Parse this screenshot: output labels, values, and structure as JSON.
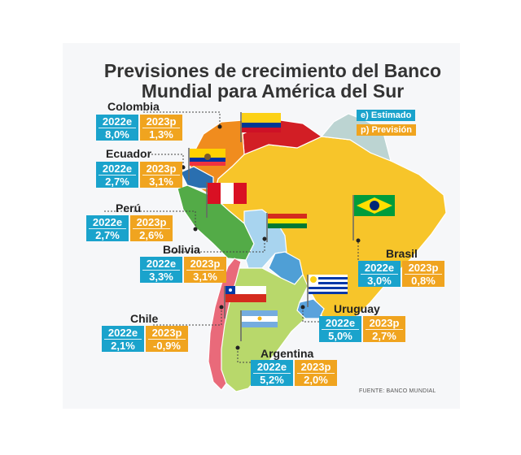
{
  "title": {
    "line1": "Previsiones de crecimiento del Banco",
    "line2": "Mundial para América del Sur"
  },
  "legend": {
    "estimated": "e) Estimado",
    "forecast": "p) Previsión",
    "colors": {
      "estimated": "#1aa3cc",
      "forecast": "#f0a41f"
    }
  },
  "countries": {
    "colombia": {
      "name": "Colombia",
      "e_label": "2022e",
      "e_value": "8,0%",
      "p_label": "2023p",
      "p_value": "1,3%"
    },
    "ecuador": {
      "name": "Ecuador",
      "e_label": "2022e",
      "e_value": "2,7%",
      "p_label": "2023p",
      "p_value": "3,1%"
    },
    "peru": {
      "name": "Perú",
      "e_label": "2022e",
      "e_value": "2,7%",
      "p_label": "2023p",
      "p_value": "2,6%"
    },
    "bolivia": {
      "name": "Bolivia",
      "e_label": "2022e",
      "e_value": "3,3%",
      "p_label": "2023p",
      "p_value": "3,1%"
    },
    "chile": {
      "name": "Chile",
      "e_label": "2022e",
      "e_value": "2,1%",
      "p_label": "2023p",
      "p_value": "-0,9%"
    },
    "brasil": {
      "name": "Brasil",
      "e_label": "2022e",
      "e_value": "3,0%",
      "p_label": "2023p",
      "p_value": "0,8%"
    },
    "uruguay": {
      "name": "Uruguay",
      "e_label": "2022e",
      "e_value": "5,0%",
      "p_label": "2023p",
      "p_value": "2,7%"
    },
    "argentina": {
      "name": "Argentina",
      "e_label": "2022e",
      "e_value": "5,2%",
      "p_label": "2023p",
      "p_value": "2,0%"
    }
  },
  "source": "FUENTE: BANCO MUNDIAL",
  "map_colors": {
    "brasil": "#f7c52a",
    "colombia": "#f08c1e",
    "venezuela": "#d21e25",
    "ecuador": "#2a6fb0",
    "peru": "#53ab47",
    "bolivia": "#a8d4ef",
    "chile": "#e96a7a",
    "argentina": "#b8d86b",
    "paraguay": "#4f9fd6",
    "uruguay": "#5aa2dc",
    "guianas": "#bcd4d2"
  }
}
